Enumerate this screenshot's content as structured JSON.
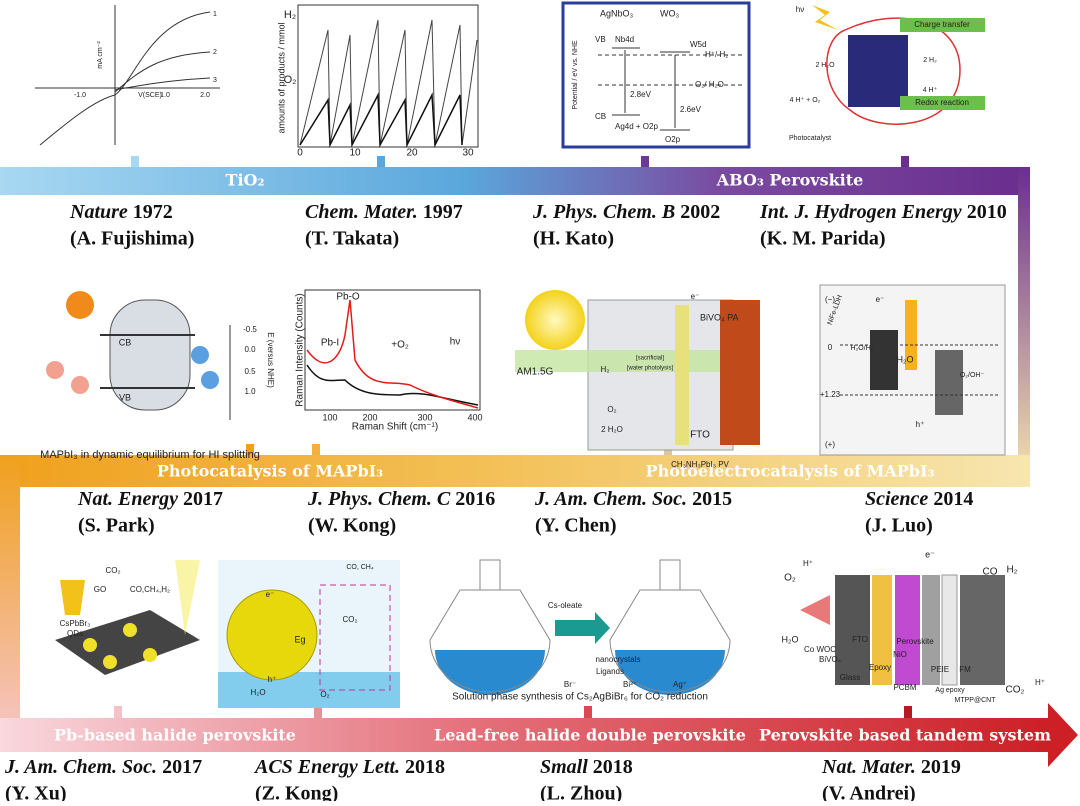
{
  "bands": [
    {
      "labels": [
        "TiO₂",
        "ABO₃ Perovskite"
      ]
    },
    {
      "labels": [
        "Photocatalysis of MAPbI₃",
        "Photoelectrocatalysis of MAPbI₃"
      ]
    },
    {
      "labels": [
        "Pb-based halide perovskite",
        "Lead-free halide double perovskite",
        "Perovskite based tandem system"
      ]
    }
  ],
  "citations": [
    {
      "journal": "Nature",
      "year": "1972",
      "author": "(A. Fujishima)"
    },
    {
      "journal": "Chem. Mater.",
      "year": "1997",
      "author": "(T. Takata)"
    },
    {
      "journal": "J. Phys. Chem. B",
      "year": "2002",
      "author": "(H. Kato)"
    },
    {
      "journal": "Int. J. Hydrogen Energy",
      "year": "2010",
      "author": "(K. M. Parida)"
    },
    {
      "journal": "Nat. Energy",
      "year": "2017",
      "author": "(S. Park)"
    },
    {
      "journal": "J. Phys. Chem. C",
      "year": "2016",
      "author": "(W. Kong)"
    },
    {
      "journal": "J. Am. Chem. Soc.",
      "year": "2015",
      "author": "(Y. Chen)"
    },
    {
      "journal": "Science",
      "year": "2014",
      "author": "(J. Luo)"
    },
    {
      "journal": "J. Am. Chem. Soc.",
      "year": "2017",
      "author": "(Y. Xu)"
    },
    {
      "journal": "ACS Energy Lett.",
      "year": "2018",
      "author": "(Z. Kong)"
    },
    {
      "journal": "Small",
      "year": "2018",
      "author": "(L. Zhou)"
    },
    {
      "journal": "Nat. Mater.",
      "year": "2019",
      "author": "(V. Andrei)"
    }
  ],
  "panels": [
    {
      "texts": [
        "mA cm⁻²",
        "V(SCE)",
        "1",
        "2",
        "3",
        "-1.0",
        "1.0",
        "2.0"
      ]
    },
    {
      "texts": [
        "H₂",
        "O₂",
        "amounts of products / mmol",
        "0",
        "10",
        "20",
        "30"
      ]
    },
    {
      "texts": [
        "AgNbO₃",
        "WO₃",
        "VB",
        "Nb4d",
        "W5d",
        "H⁺/ H₂",
        "O₂/ H₂O",
        "2.8eV",
        "2.6eV",
        "CB",
        "Ag4d + O2p",
        "O2p",
        "Potential / eV vs. NHE"
      ]
    },
    {
      "texts": [
        "Charge transfer",
        "Redox reaction",
        "2 H₂O",
        "2 H₂",
        "4 H⁺",
        "4 H⁺ + O₂",
        "Photocatalyst",
        "hν"
      ]
    },
    {
      "texts": [
        "CB",
        "VB",
        "-0.5",
        "0.0",
        "0.5",
        "1.0",
        "E (versus NHE)",
        "MAPbI₃ in dynamic equilibrium for HI splitting"
      ]
    },
    {
      "texts": [
        "Pb-O",
        "Pb-I",
        "Raman Intensity (Counts)",
        "Raman Shift (cm⁻¹)",
        "100",
        "200",
        "300",
        "400",
        "+O₂",
        "hν"
      ]
    },
    {
      "texts": [
        "BiVO₄ PA",
        "AM1.5G",
        "FTO",
        "CH₃NH₃PbI₃ PV",
        "O₂",
        "2 H₂O",
        "e⁻",
        "H₂",
        "[water photolysis]",
        "[sacrificial]"
      ]
    },
    {
      "texts": [
        "(−)",
        "(+)",
        "0",
        "+1.23",
        "H₂O/H₂",
        "O₂/OH⁻",
        "H₂O",
        "NiFe-LDH",
        "e⁻",
        "h⁺"
      ]
    },
    {
      "texts": [
        "CO₂",
        "GO",
        "CO,CH₄,H₂",
        "CsPbBr₃",
        "QDs"
      ]
    },
    {
      "texts": [
        "CO, CH₄",
        "CO₂",
        "e⁻",
        "h⁺",
        "H₂O",
        "O₂",
        "Eg"
      ]
    },
    {
      "texts": [
        "Cs-oleate",
        "nanocrystals",
        "Ligands",
        "Br⁻",
        "Bi³⁺",
        "Ag⁺",
        "Solution phase synthesis of Cs₂AgBiBr₆ for CO₂ reduction"
      ]
    },
    {
      "texts": [
        "CO",
        "H₂",
        "O₂",
        "H⁺",
        "e⁻",
        "H₂O",
        "CO₂",
        "H⁺",
        "BiVO₄",
        "Co WOC",
        "FTO",
        "Glass",
        "Epoxy",
        "NiO",
        "Perovskite",
        "PCBM",
        "PEIE",
        "FM",
        "Ag epoxy",
        "MTPP@CNT"
      ]
    }
  ]
}
